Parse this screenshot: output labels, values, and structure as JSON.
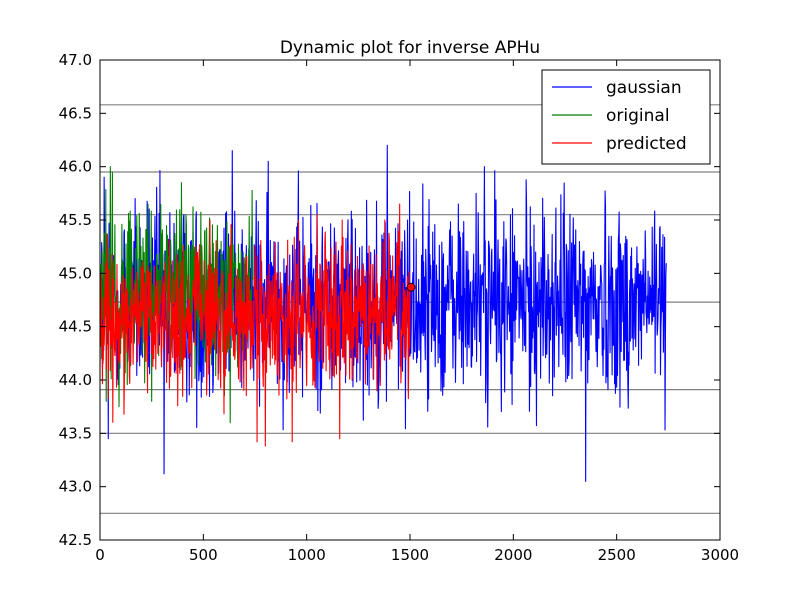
{
  "chart_data": {
    "type": "line",
    "title": "Dynamic plot for inverse APHu",
    "xlabel": "",
    "ylabel": "",
    "xlim": [
      0,
      3000
    ],
    "ylim": [
      42.5,
      47.0
    ],
    "xticks": [
      "0",
      "500",
      "1000",
      "1500",
      "2000",
      "2500",
      "3000"
    ],
    "yticks": [
      "42.5",
      "43.0",
      "43.5",
      "44.0",
      "44.5",
      "45.0",
      "45.5",
      "46.0",
      "46.5",
      "47.0"
    ],
    "reference_lines_y": [
      46.58,
      45.95,
      45.55,
      44.73,
      43.91,
      43.5,
      42.75
    ],
    "legend_position": "top-right",
    "series": [
      {
        "name": "gaussian",
        "color": "#0000ff",
        "x_range": [
          0,
          2740
        ],
        "center": 44.73,
        "spread": 0.45,
        "min": 43.05,
        "max": 46.2,
        "notable_points": [
          [
            20,
            45.9
          ],
          [
            40,
            43.45
          ],
          [
            310,
            43.12
          ],
          [
            640,
            46.15
          ],
          [
            1390,
            46.2
          ],
          [
            1860,
            46.0
          ],
          [
            2350,
            43.05
          ]
        ]
      },
      {
        "name": "original",
        "color": "#008000",
        "x_range": [
          0,
          740
        ],
        "center": 44.85,
        "spread": 0.4,
        "min": 43.6,
        "max": 46.0,
        "notable_points": [
          [
            30,
            43.8
          ],
          [
            50,
            46.0
          ],
          [
            60,
            45.95
          ],
          [
            250,
            43.8
          ],
          [
            630,
            43.6
          ]
        ]
      },
      {
        "name": "predicted",
        "color": "#ff0000",
        "x_range": [
          0,
          1500
        ],
        "center": 44.6,
        "spread": 0.35,
        "min": 43.38,
        "max": 45.65,
        "notable_points": [
          [
            760,
            43.42
          ],
          [
            800,
            43.38
          ],
          [
            930,
            43.42
          ],
          [
            1050,
            45.55
          ],
          [
            1160,
            43.45
          ],
          [
            1450,
            45.65
          ]
        ]
      }
    ],
    "marker": {
      "x": 1505,
      "y": 44.87,
      "color": "#ff0000"
    }
  }
}
